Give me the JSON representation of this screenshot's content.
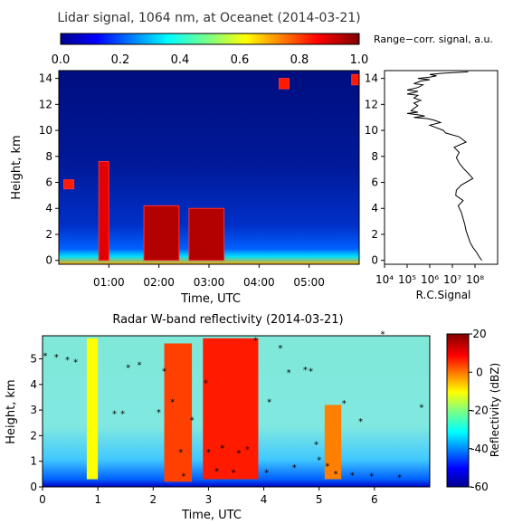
{
  "chart_data": [
    {
      "type": "heatmap",
      "title": "Lidar signal, 1064 nm, at Oceanet (2014-03-21)",
      "colorbar": {
        "label": "Range−corr. signal, a.u.",
        "ticks": [
          "0.0",
          "0.2",
          "0.4",
          "0.6",
          "0.8",
          "1.0"
        ],
        "range": [
          0,
          1
        ],
        "placement": "top",
        "colormap": "jet"
      },
      "xlabel": "Time, UTC",
      "ylabel": "Height, km",
      "x_ticks": [
        "01:00",
        "02:00",
        "03:00",
        "04:00",
        "05:00"
      ],
      "x_tick_values": [
        1,
        2,
        3,
        4,
        5
      ],
      "xlim": [
        0,
        6
      ],
      "y_ticks": [
        "0",
        "2",
        "4",
        "6",
        "8",
        "10",
        "12",
        "14"
      ],
      "ylim": [
        -0.3,
        14.6
      ],
      "cloud_features": [
        {
          "t0": 1.7,
          "t1": 2.4,
          "z0": 0,
          "z1": 4.2,
          "value": 0.95
        },
        {
          "t0": 2.6,
          "t1": 3.3,
          "z0": 0,
          "z1": 4.0,
          "value": 0.95
        },
        {
          "t0": 0.8,
          "t1": 1.0,
          "z0": 0,
          "z1": 7.6,
          "value": 0.9
        },
        {
          "t0": 0.1,
          "t1": 0.3,
          "z0": 5.5,
          "z1": 6.2,
          "value": 0.85
        },
        {
          "t0": 4.4,
          "t1": 4.6,
          "z0": 13.2,
          "z1": 14.0,
          "value": 0.85
        },
        {
          "t0": 5.85,
          "t1": 6.0,
          "z0": 13.5,
          "z1": 14.3,
          "value": 0.85
        }
      ]
    },
    {
      "type": "line",
      "xlabel": "R.C.Signal",
      "x_scale": "log",
      "x_ticks": [
        "10⁴",
        "10⁵",
        "10⁶",
        "10⁷",
        "10⁸"
      ],
      "x_exponents": [
        4,
        5,
        6,
        7,
        8
      ],
      "xlim": [
        10000.0,
        1000000000.0
      ],
      "y_ticks": [
        "0",
        "2",
        "4",
        "6",
        "8",
        "10",
        "12",
        "14"
      ],
      "ylim": [
        -0.3,
        14.6
      ],
      "series": [
        {
          "x": [
            200000000.0,
            150000000.0,
            120000000.0,
            80000000.0,
            60000000.0,
            50000000.0,
            40000000.0,
            35000000.0,
            30000000.0,
            25000000.0,
            18000000.0,
            30000000.0,
            14000000.0,
            15000000.0,
            25000000.0,
            80000000.0,
            50000000.0,
            30000000.0,
            20000000.0,
            15000000.0,
            20000000.0,
            12000000.0,
            40000000.0,
            20000000.0,
            5000000.0,
            4000000.0,
            2000000.0,
            1000000.0,
            3000000.0,
            1500000.0,
            800000.0,
            200000.0,
            600000.0,
            300000.0,
            100000.0,
            300000.0,
            150000.0,
            200000.0,
            300000.0,
            200000.0,
            400000.0,
            200000.0,
            300000.0,
            100000.0,
            200000.0,
            300000.0,
            100000.0,
            300000.0,
            500000.0,
            200000.0,
            400000.0,
            1000000.0,
            300000.0,
            1000000.0,
            2000000.0,
            1000000.0,
            4000000.0,
            50000000.0
          ],
          "y": [
            0,
            0.3,
            0.6,
            1.0,
            1.4,
            1.8,
            2.3,
            2.8,
            3.2,
            3.7,
            4.2,
            4.6,
            5.0,
            5.4,
            5.8,
            6.3,
            6.7,
            7.1,
            7.5,
            7.9,
            8.3,
            8.7,
            9.1,
            9.5,
            9.8,
            10.0,
            10.2,
            10.4,
            10.6,
            10.8,
            10.9,
            11.0,
            11.1,
            11.2,
            11.3,
            11.4,
            11.5,
            11.7,
            11.9,
            12.1,
            12.3,
            12.5,
            12.7,
            12.8,
            12.9,
            13.0,
            13.1,
            13.3,
            13.5,
            13.6,
            13.8,
            13.9,
            14.0,
            14.1,
            14.2,
            14.3,
            14.4,
            14.5
          ]
        }
      ]
    },
    {
      "type": "heatmap",
      "title": "Radar W-band reflectivity (2014-03-21)",
      "xlabel": "Time, UTC",
      "ylabel": "Height, km",
      "x_ticks": [
        "0",
        "1",
        "2",
        "3",
        "4",
        "5",
        "6"
      ],
      "xlim": [
        0,
        7
      ],
      "y_ticks": [
        "0",
        "1",
        "2",
        "3",
        "4",
        "5"
      ],
      "ylim": [
        0,
        5.9
      ],
      "colorbar": {
        "label": "Reflectivity (dBZ)",
        "ticks": [
          "20",
          "0",
          "-20",
          "-40",
          "-60"
        ],
        "range": [
          -60,
          20
        ],
        "placement": "right",
        "colormap": "jet"
      },
      "cloud_features": [
        {
          "t0": 2.2,
          "t1": 2.7,
          "z0": 0.2,
          "z1": 5.6,
          "value_dbz": 5
        },
        {
          "t0": 2.9,
          "t1": 3.9,
          "z0": 0.3,
          "z1": 5.8,
          "value_dbz": 8
        },
        {
          "t0": 0.8,
          "t1": 1.0,
          "z0": 0.3,
          "z1": 5.8,
          "value_dbz": -10
        },
        {
          "t0": 5.1,
          "t1": 5.4,
          "z0": 0.3,
          "z1": 3.2,
          "value_dbz": 0
        }
      ],
      "markers": {
        "x": [
          0.05,
          0.25,
          0.45,
          0.6,
          1.55,
          1.75,
          2.1,
          2.2,
          2.35,
          2.5,
          2.55,
          2.7,
          2.95,
          3.0,
          3.15,
          3.25,
          3.45,
          3.55,
          3.7,
          3.85,
          4.05,
          4.1,
          4.3,
          4.45,
          4.55,
          4.75,
          4.85,
          4.95,
          5.0,
          5.15,
          5.3,
          5.45,
          5.6,
          5.75,
          5.95,
          6.15,
          6.45,
          6.85,
          1.3,
          1.45
        ],
        "y": [
          5.1,
          5.05,
          4.95,
          4.85,
          4.65,
          4.75,
          2.9,
          4.5,
          3.3,
          1.35,
          0.4,
          2.6,
          4.05,
          1.35,
          0.6,
          1.5,
          0.55,
          1.3,
          1.45,
          5.7,
          0.55,
          3.3,
          5.4,
          4.45,
          0.75,
          4.55,
          4.5,
          1.65,
          1.05,
          0.8,
          0.5,
          3.25,
          0.45,
          2.55,
          0.4,
          5.95,
          0.35,
          3.1,
          2.85,
          2.85
        ]
      }
    }
  ]
}
